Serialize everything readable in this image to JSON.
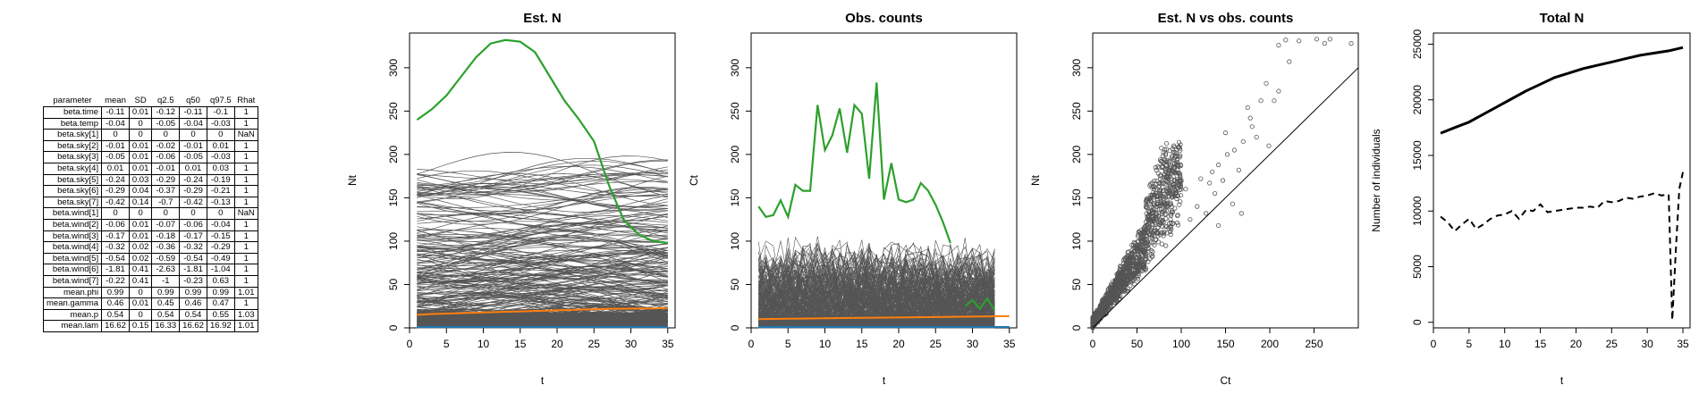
{
  "param_table": {
    "headers": [
      "parameter",
      "mean",
      "SD",
      "q2.5",
      "q50",
      "q97.5",
      "Rhat"
    ],
    "rows": [
      [
        "beta.time",
        "-0.11",
        "0.01",
        "-0.12",
        "-0.11",
        "-0.1",
        "1"
      ],
      [
        "beta.temp",
        "-0.04",
        "0",
        "-0.05",
        "-0.04",
        "-0.03",
        "1"
      ],
      [
        "beta.sky[1]",
        "0",
        "0",
        "0",
        "0",
        "0",
        "NaN"
      ],
      [
        "beta.sky[2]",
        "-0.01",
        "0.01",
        "-0.02",
        "-0.01",
        "0.01",
        "1"
      ],
      [
        "beta.sky[3]",
        "-0.05",
        "0.01",
        "-0.06",
        "-0.05",
        "-0.03",
        "1"
      ],
      [
        "beta.sky[4]",
        "0.01",
        "0.01",
        "-0.01",
        "0.01",
        "0.03",
        "1"
      ],
      [
        "beta.sky[5]",
        "-0.24",
        "0.03",
        "-0.29",
        "-0.24",
        "-0.19",
        "1"
      ],
      [
        "beta.sky[6]",
        "-0.29",
        "0.04",
        "-0.37",
        "-0.29",
        "-0.21",
        "1"
      ],
      [
        "beta.sky[7]",
        "-0.42",
        "0.14",
        "-0.7",
        "-0.42",
        "-0.13",
        "1"
      ],
      [
        "beta.wind[1]",
        "0",
        "0",
        "0",
        "0",
        "0",
        "NaN"
      ],
      [
        "beta.wind[2]",
        "-0.06",
        "0.01",
        "-0.07",
        "-0.06",
        "-0.04",
        "1"
      ],
      [
        "beta.wind[3]",
        "-0.17",
        "0.01",
        "-0.18",
        "-0.17",
        "-0.15",
        "1"
      ],
      [
        "beta.wind[4]",
        "-0.32",
        "0.02",
        "-0.36",
        "-0.32",
        "-0.29",
        "1"
      ],
      [
        "beta.wind[5]",
        "-0.54",
        "0.02",
        "-0.59",
        "-0.54",
        "-0.49",
        "1"
      ],
      [
        "beta.wind[6]",
        "-1.81",
        "0.41",
        "-2.63",
        "-1.81",
        "-1.04",
        "1"
      ],
      [
        "beta.wind[7]",
        "-0.22",
        "0.41",
        "-1",
        "-0.23",
        "0.63",
        "1"
      ],
      [
        "mean.phi",
        "0.99",
        "0",
        "0.99",
        "0.99",
        "0.99",
        "1.01"
      ],
      [
        "mean.gamma",
        "0.46",
        "0.01",
        "0.45",
        "0.46",
        "0.47",
        "1"
      ],
      [
        "mean.p",
        "0.54",
        "0",
        "0.54",
        "0.54",
        "0.55",
        "1.03"
      ],
      [
        "mean.lam",
        "16.62",
        "0.15",
        "16.33",
        "16.62",
        "16.92",
        "1.01"
      ]
    ]
  },
  "colors": {
    "gray_lines": "#555555",
    "highlight_green": "#2ca02c",
    "mean_orange": "#ff7f0e",
    "base_blue": "#1f77b4",
    "ink": "#000000"
  },
  "chart_data": [
    {
      "type": "line",
      "title": "Est. N",
      "xlabel": "t",
      "ylabel": "Nt",
      "xlim": [
        0,
        36
      ],
      "ylim": [
        0,
        340
      ],
      "xticks": [
        0,
        5,
        10,
        15,
        20,
        25,
        30,
        35
      ],
      "yticks": [
        0,
        50,
        100,
        150,
        200,
        250,
        300
      ],
      "x": [
        1,
        3,
        5,
        7,
        9,
        11,
        13,
        15,
        17,
        19,
        21,
        23,
        25,
        27,
        29,
        31,
        33,
        35
      ],
      "series": [
        {
          "role": "highlight",
          "color": "#2ca02c",
          "values": [
            240,
            252,
            268,
            290,
            312,
            328,
            332,
            330,
            318,
            290,
            262,
            240,
            215,
            165,
            125,
            108,
            100,
            98
          ]
        },
        {
          "role": "mean",
          "color": "#ff7f0e",
          "values": [
            15,
            16,
            16.5,
            17,
            17.5,
            18,
            18.5,
            19,
            19.5,
            20,
            20.5,
            21,
            21.5,
            22,
            22,
            22.5,
            22.5,
            23
          ]
        },
        {
          "role": "baseline",
          "color": "#1f77b4",
          "values": [
            1,
            1,
            1,
            1,
            1,
            1,
            1,
            1,
            1,
            1,
            1,
            1,
            1,
            1,
            1,
            1,
            1,
            1
          ]
        }
      ],
      "background_sites": {
        "count": 267,
        "level_range": [
          0,
          185
        ],
        "color": "#555555"
      }
    },
    {
      "type": "line",
      "title": "Obs. counts",
      "xlabel": "t",
      "ylabel": "Ct",
      "xlim": [
        0,
        36
      ],
      "ylim": [
        0,
        340
      ],
      "xticks": [
        0,
        5,
        10,
        15,
        20,
        25,
        30,
        35
      ],
      "yticks": [
        0,
        50,
        100,
        150,
        200,
        250,
        300
      ],
      "series": [
        {
          "role": "highlight",
          "color": "#2ca02c",
          "segments": [
            {
              "x": [
                1,
                2,
                3,
                4,
                5,
                6,
                7,
                8,
                9,
                10,
                11,
                12,
                13,
                14,
                15,
                16,
                17,
                18,
                19,
                20,
                21,
                22,
                23,
                24,
                25,
                26,
                27
              ],
              "values": [
                140,
                128,
                130,
                147,
                128,
                165,
                158,
                158,
                257,
                205,
                222,
                253,
                202,
                257,
                247,
                172,
                283,
                148,
                190,
                148,
                145,
                148,
                167,
                158,
                142,
                122,
                98
              ]
            },
            {
              "x": [
                29,
                30,
                31,
                32,
                33
              ],
              "values": [
                25,
                32,
                22,
                34,
                20
              ]
            }
          ]
        },
        {
          "role": "mean",
          "color": "#ff7f0e",
          "x": [
            1,
            5,
            10,
            15,
            20,
            25,
            30,
            35
          ],
          "values": [
            10,
            10.5,
            11,
            11.5,
            12,
            12.5,
            13,
            13.5
          ]
        },
        {
          "role": "baseline",
          "color": "#1f77b4",
          "x": [
            1,
            35
          ],
          "values": [
            1,
            1
          ]
        }
      ],
      "background_sites": {
        "count": 267,
        "x_range": [
          1,
          33
        ],
        "level_range": [
          0,
          120
        ],
        "color": "#555555"
      }
    },
    {
      "type": "scatter",
      "title": "Est. N vs obs. counts",
      "xlabel": "Ct",
      "ylabel": "Nt",
      "xlim": [
        0,
        300
      ],
      "ylim": [
        0,
        340
      ],
      "xticks": [
        0,
        50,
        100,
        150,
        200,
        250
      ],
      "yticks": [
        0,
        50,
        100,
        150,
        200,
        250,
        300
      ],
      "reference_line": {
        "slope": 1,
        "intercept": 0
      },
      "points": [
        [
          128,
          132
        ],
        [
          132,
          167
        ],
        [
          138,
          155
        ],
        [
          142,
          188
        ],
        [
          147,
          170
        ],
        [
          150,
          225
        ],
        [
          158,
          143
        ],
        [
          160,
          205
        ],
        [
          165,
          182
        ],
        [
          168,
          132
        ],
        [
          175,
          254
        ],
        [
          178,
          242
        ],
        [
          180,
          232
        ],
        [
          185,
          220
        ],
        [
          190,
          262
        ],
        [
          196,
          282
        ],
        [
          199,
          210
        ],
        [
          205,
          262
        ],
        [
          210,
          273
        ],
        [
          222,
          307
        ],
        [
          210,
          326
        ],
        [
          218,
          332
        ],
        [
          233,
          331
        ],
        [
          253,
          333
        ],
        [
          262,
          328
        ],
        [
          268,
          333
        ],
        [
          292,
          328
        ],
        [
          142,
          118
        ],
        [
          135,
          180
        ],
        [
          152,
          200
        ],
        [
          170,
          215
        ],
        [
          110,
          125
        ],
        [
          118,
          140
        ],
        [
          105,
          160
        ],
        [
          122,
          172
        ]
      ],
      "dense_cloud": {
        "approx_points": 1600,
        "color": "#555555"
      }
    },
    {
      "type": "line",
      "title": "Total N",
      "xlabel": "t",
      "ylabel": "Number of individuals",
      "xlim": [
        0,
        36
      ],
      "ylim": [
        -500,
        26000
      ],
      "xticks": [
        0,
        5,
        10,
        15,
        20,
        25,
        30,
        35
      ],
      "yticks": [
        0,
        5000,
        10000,
        15000,
        20000,
        25000
      ],
      "series": [
        {
          "role": "estimated_total",
          "style": "solid",
          "x": [
            1,
            3,
            5,
            7,
            9,
            11,
            13,
            15,
            17,
            19,
            21,
            23,
            25,
            27,
            29,
            31,
            33,
            35
          ],
          "values": [
            17000,
            17500,
            18000,
            18700,
            19400,
            20100,
            20800,
            21400,
            22000,
            22400,
            22800,
            23100,
            23400,
            23700,
            24000,
            24200,
            24400,
            24700
          ]
        },
        {
          "role": "observed_total",
          "style": "dashed",
          "x": [
            1,
            2,
            3,
            4,
            5,
            6,
            7,
            8,
            9,
            10,
            11,
            12,
            13,
            14,
            15,
            16,
            17,
            18,
            19,
            20,
            21,
            22,
            23,
            24,
            25,
            26,
            27,
            28,
            29,
            30,
            31,
            32,
            33,
            33.5,
            34,
            34.5,
            35
          ],
          "values": [
            9500,
            9000,
            8200,
            8800,
            9300,
            8400,
            8800,
            9300,
            9600,
            9700,
            10000,
            9300,
            10100,
            10000,
            10600,
            9900,
            10000,
            10100,
            10200,
            10300,
            10300,
            10400,
            10300,
            10900,
            10800,
            10900,
            11200,
            11100,
            11300,
            11400,
            11600,
            11400,
            11500,
            200,
            6500,
            12000,
            13500
          ]
        }
      ]
    }
  ]
}
